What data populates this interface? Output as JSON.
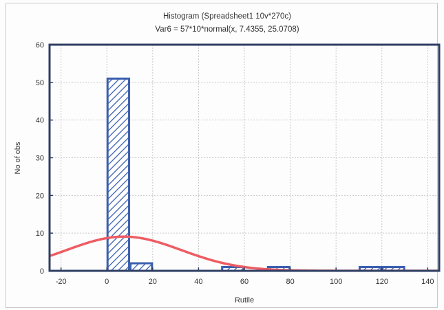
{
  "chart_data": {
    "type": "bar",
    "title": "Histogram (Spreadsheet1 10v*270c)",
    "subtitle": "Var6 = 57*10*normal(x, 7.4355, 25.0708)",
    "xlabel": "Rutile",
    "ylabel": "No of obs",
    "xlim": [
      -25,
      145
    ],
    "ylim": [
      0,
      60
    ],
    "x_ticks": [
      -20,
      0,
      20,
      40,
      60,
      80,
      100,
      120,
      140
    ],
    "y_ticks": [
      0,
      10,
      20,
      30,
      40,
      50,
      60
    ],
    "grid": true,
    "bin_width": 10,
    "bins": [
      {
        "start": 0,
        "end": 10,
        "count": 51
      },
      {
        "start": 10,
        "end": 20,
        "count": 2
      },
      {
        "start": 20,
        "end": 30,
        "count": 0
      },
      {
        "start": 30,
        "end": 40,
        "count": 0
      },
      {
        "start": 40,
        "end": 50,
        "count": 0
      },
      {
        "start": 50,
        "end": 60,
        "count": 1
      },
      {
        "start": 60,
        "end": 70,
        "count": 0
      },
      {
        "start": 70,
        "end": 80,
        "count": 1
      },
      {
        "start": 80,
        "end": 90,
        "count": 0
      },
      {
        "start": 90,
        "end": 100,
        "count": 0
      },
      {
        "start": 100,
        "end": 110,
        "count": 0
      },
      {
        "start": 110,
        "end": 120,
        "count": 1
      },
      {
        "start": 120,
        "end": 130,
        "count": 1
      }
    ],
    "fit": {
      "n": 57,
      "bin_width": 10,
      "mean": 7.4355,
      "sd": 25.0708
    },
    "colors": {
      "bar": "#3a5fb0",
      "curve": "#ee5c63",
      "axis": "#2e3e63",
      "grid": "#c8c8c8"
    }
  }
}
